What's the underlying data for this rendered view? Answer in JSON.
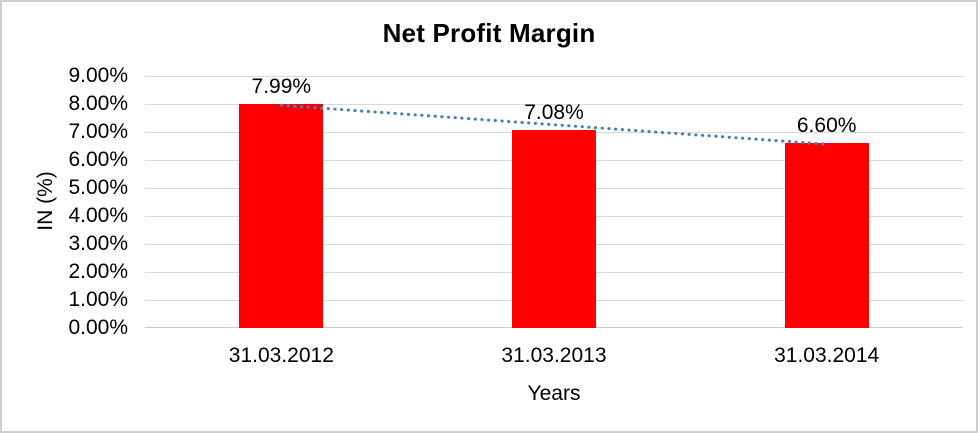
{
  "chart_data": {
    "type": "bar",
    "title": "Net Profit Margin",
    "xlabel": "Years",
    "ylabel": "IN (%)",
    "categories": [
      "31.03.2012",
      "31.03.2013",
      "31.03.2014"
    ],
    "values": [
      7.99,
      7.08,
      6.6
    ],
    "data_labels": [
      "7.99%",
      "7.08%",
      "6.60%"
    ],
    "ylim": [
      0,
      9
    ],
    "ytick_step": 1,
    "ytick_labels": [
      "0.00%",
      "1.00%",
      "2.00%",
      "3.00%",
      "4.00%",
      "5.00%",
      "6.00%",
      "7.00%",
      "8.00%",
      "9.00%"
    ],
    "grid": true,
    "legend_position": "none",
    "bar_color": "#FF0000",
    "gridline_color": "#D9D9D9",
    "text_color": "#000000",
    "background": "#FFFFFF",
    "border_color": "#D0CECE",
    "trendline": {
      "type": "linear",
      "style": "dotted",
      "color": "#4A7EBB",
      "from": {
        "category_index": 0,
        "value": 7.99
      },
      "to": {
        "category_index": 2,
        "value": 6.6
      }
    }
  }
}
